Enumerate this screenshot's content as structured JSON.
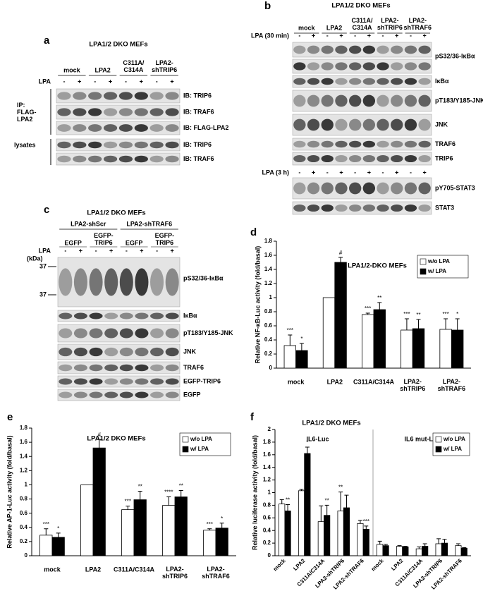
{
  "figure": {
    "panel_a": {
      "label": "a",
      "title": "LPA1/2 DKO MEFs",
      "groups": [
        "mock",
        "LPA2",
        "C311A/\nC314A",
        "LPA2-\nshTRIP6"
      ],
      "treatment": "LPA",
      "signs": [
        "-",
        "+",
        "-",
        "+",
        "-",
        "+",
        "-",
        "+"
      ],
      "side_labels": [
        "IP:\nFLAG-\nLPA2",
        "lysates"
      ],
      "rows": [
        "IB: TRIP6",
        "IB: TRAF6",
        "IB: FLAG-LPA2",
        "IB: TRIP6",
        "IB: TRAF6"
      ]
    },
    "panel_b": {
      "label": "b",
      "title": "LPA1/2 DKO MEFs",
      "groups": [
        "mock",
        "LPA2",
        "C311A/\nC314A",
        "LPA2-\nshTRIP6",
        "LPA2-\nshTRAF6"
      ],
      "treatment": "LPA (30 min)",
      "signs": [
        "-",
        "+",
        "-",
        "+",
        "-",
        "+",
        "-",
        "+",
        "-",
        "+"
      ],
      "treatment_2": "LPA (3 h)",
      "signs_2": [
        "-",
        "+",
        "-",
        "+",
        "-",
        "+",
        "-",
        "+",
        "-",
        "+"
      ],
      "rows": [
        "pS32/36-IκBα",
        "IκBα",
        "pT183/Y185-JNK",
        "JNK",
        "TRAF6",
        "TRIP6",
        "pY705-STAT3",
        "STAT3"
      ]
    },
    "panel_c": {
      "label": "c",
      "title": "LPA1/2 DKO MEFs",
      "groups": [
        "LPA2-shScr",
        "LPA2-shTRAF6"
      ],
      "subgroups": [
        "EGFP",
        "EGFP-\nTRIP6",
        "EGFP",
        "EGFP-\nTRIP6"
      ],
      "treatment": "LPA",
      "signs": [
        "-",
        "+",
        "-",
        "+",
        "-",
        "+",
        "-",
        "+"
      ],
      "unit": "(kDa)",
      "markers": [
        "37",
        "37"
      ],
      "rows": [
        "pS32/36-IκBα",
        "IκBα",
        "pT183/Y185-JNK",
        "JNK",
        "TRAF6",
        "EGFP-TRIP6",
        "EGFP"
      ]
    }
  },
  "chart_data": [
    {
      "panel": "d",
      "type": "bar",
      "title": "LPA1/2-DKO MEFs",
      "y_label": "Relative NF-κB-Luc activity (fold/basal)",
      "categories": [
        "mock",
        "LPA2",
        "C311A/C314A",
        "LPA2-\nshTRIP6",
        "LPA2-\nshTRAF6"
      ],
      "series": [
        {
          "name": "w/o LPA",
          "color": "#ffffff",
          "values": [
            0.32,
            1.0,
            0.76,
            0.54,
            0.55
          ],
          "errors": [
            0.15,
            null,
            0.02,
            0.16,
            0.15
          ],
          "significance": [
            "***",
            null,
            "***",
            "***",
            "***"
          ]
        },
        {
          "name": "w/ LPA",
          "color": "#000000",
          "values": [
            0.25,
            1.5,
            0.83,
            0.56,
            0.54
          ],
          "errors": [
            0.1,
            0.07,
            0.1,
            0.13,
            0.16
          ],
          "significance": [
            "*",
            "#",
            "**",
            "**",
            "*"
          ]
        }
      ],
      "ylim": [
        0,
        1.8
      ],
      "yticks": [
        0,
        0.2,
        0.4,
        0.6,
        0.8,
        1,
        1.2,
        1.4,
        1.6,
        1.8
      ],
      "legend": "upper right"
    },
    {
      "panel": "e",
      "type": "bar",
      "title": "LPA1/2 DKO MEFs",
      "y_label": "Relative AP-1-Luc activity (fold/basal)",
      "categories": [
        "mock",
        "LPA2",
        "C311A/C314A",
        "LPA2-\nshTRIP6",
        "LPA2-\nshTRAF6"
      ],
      "series": [
        {
          "name": "w/o LPA",
          "color": "#ffffff",
          "values": [
            0.29,
            1.0,
            0.65,
            0.71,
            0.36
          ],
          "errors": [
            0.09,
            null,
            0.05,
            0.12,
            0.02
          ],
          "significance": [
            "***",
            null,
            "***",
            "****",
            "***"
          ]
        },
        {
          "name": "w/ LPA",
          "color": "#000000",
          "values": [
            0.26,
            1.52,
            0.79,
            0.83,
            0.39
          ],
          "errors": [
            0.06,
            0.12,
            0.12,
            0.09,
            0.07
          ],
          "significance": [
            "*",
            "#",
            "**",
            "**",
            "*"
          ]
        }
      ],
      "ylim": [
        0,
        1.8
      ],
      "yticks": [
        0,
        0.2,
        0.4,
        0.6,
        0.8,
        1,
        1.2,
        1.4,
        1.6,
        1.8
      ],
      "legend": "upper right"
    },
    {
      "panel": "f",
      "type": "bar",
      "title": "LPA1/2 DKO MEFs",
      "y_label": "Relative luciferase activity (fold/basal)",
      "groups": [
        "IL6-Luc",
        "IL6 mut-Luc"
      ],
      "rotate_labels": true,
      "categories": [
        "mock",
        "LPA2",
        "C311A/C314A",
        "LPA2-shTRIP6",
        "LPA2-shTRAF6",
        "mock",
        "LPA2",
        "C311A/C314A",
        "LPA2-shTRIP6",
        "LPA2-shTRAF6"
      ],
      "series": [
        {
          "name": "w/o LPA",
          "color": "#ffffff",
          "values": [
            0.82,
            1.03,
            0.54,
            0.71,
            0.51,
            0.18,
            0.15,
            0.11,
            0.19,
            0.16
          ],
          "errors": [
            0.07,
            0.02,
            0.25,
            0.3,
            0.05,
            0.05,
            0.01,
            0.03,
            0.08,
            0.03
          ],
          "significance": [
            null,
            null,
            null,
            "**",
            null,
            null,
            null,
            null,
            null,
            null
          ]
        },
        {
          "name": "w/ LPA",
          "color": "#000000",
          "values": [
            0.71,
            1.62,
            0.64,
            0.76,
            0.42,
            0.16,
            0.14,
            0.15,
            0.2,
            0.12
          ],
          "errors": [
            0.1,
            0.1,
            0.16,
            0.2,
            0.05,
            0.02,
            0.01,
            0.04,
            0.06,
            0.01
          ],
          "significance": [
            "**",
            "*",
            "**",
            null,
            "***",
            null,
            null,
            null,
            null,
            null
          ]
        }
      ],
      "ylim": [
        0,
        2
      ],
      "yticks": [
        0,
        0.2,
        0.4,
        0.6,
        0.8,
        1,
        1.2,
        1.4,
        1.6,
        1.8,
        2
      ],
      "legend": "upper right"
    }
  ]
}
